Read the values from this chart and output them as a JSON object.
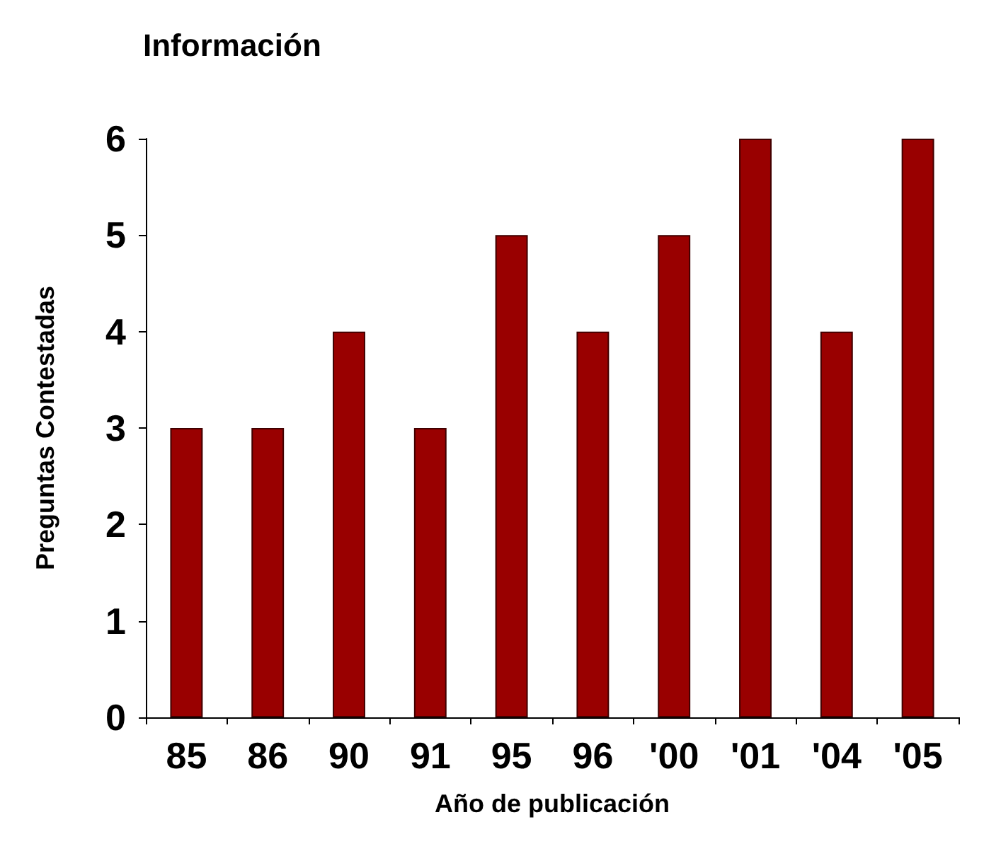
{
  "chart_data": {
    "type": "bar",
    "title": "Información",
    "xlabel": "Año de publicación",
    "ylabel": "Preguntas Contestadas",
    "categories": [
      "85",
      "86",
      "90",
      "91",
      "95",
      "96",
      "'00",
      "'01",
      "'04",
      "'05"
    ],
    "values": [
      3,
      3,
      4,
      3,
      5,
      4,
      5,
      6,
      4,
      6
    ],
    "color": "#990000",
    "ylim": [
      0,
      6
    ],
    "yticks": [
      0,
      1,
      2,
      3,
      4,
      5,
      6
    ],
    "grid": false
  }
}
